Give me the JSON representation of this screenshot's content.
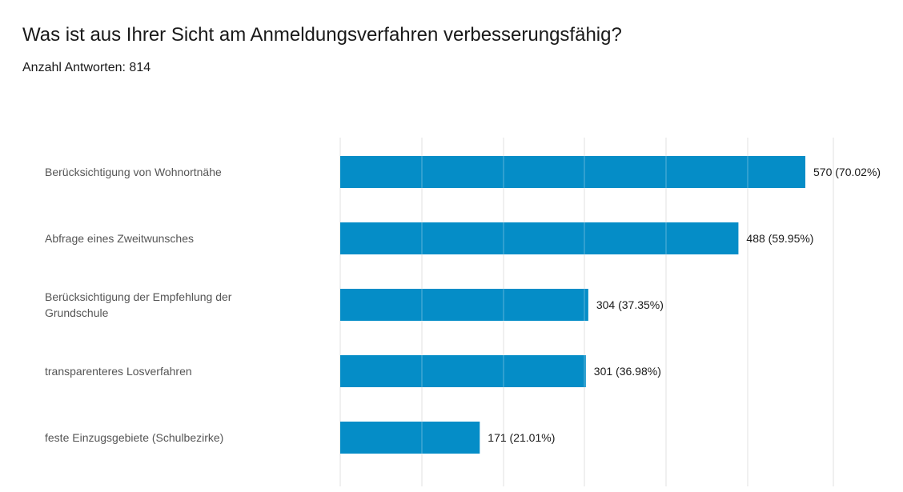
{
  "header": {
    "title": "Was ist aus Ihrer Sicht am Anmeldungsverfahren verbesserungsfähig?",
    "subtitle": "Anzahl Antworten: 814"
  },
  "chart_data": {
    "type": "bar",
    "orientation": "horizontal",
    "title": "Was ist aus Ihrer Sicht am Anmeldungsverfahren verbesserungsfähig?",
    "total_responses": 814,
    "categories": [
      [
        "Berücksichtigung von Wohnortnähe"
      ],
      [
        "Abfrage eines Zweitwunsches"
      ],
      [
        "Berücksichtigung der Empfehlung der",
        "Grundschule"
      ],
      [
        "transparenteres Losverfahren"
      ],
      [
        "feste Einzugsgebiete (Schulbezirke)"
      ]
    ],
    "values": [
      570,
      488,
      304,
      301,
      171
    ],
    "value_labels": [
      "570 (70.02%)",
      "488 (59.95%)",
      "304 (37.35%)",
      "301 (36.98%)",
      "171 (21.01%)"
    ],
    "xlim": [
      0,
      570
    ],
    "grid": true,
    "bar_color": "#058dc7",
    "grid_color": "#e0e0e0",
    "label_color": "#555555",
    "value_label_color": "#1a1a1a"
  }
}
